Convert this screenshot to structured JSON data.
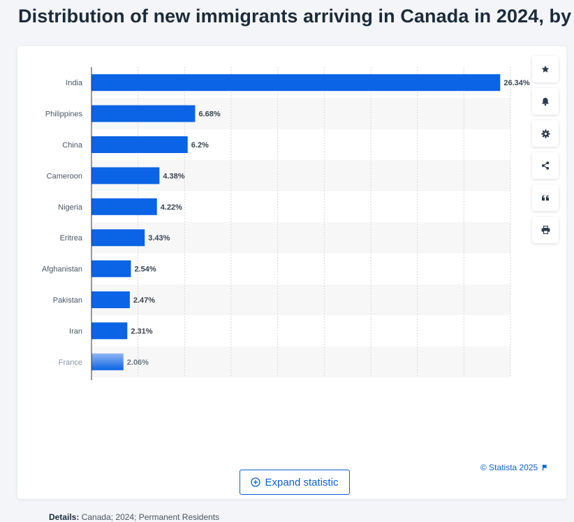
{
  "page": {
    "title": "Distribution of new immigrants arriving in Canada in 2024, by"
  },
  "tools": [
    {
      "name": "favorite"
    },
    {
      "name": "notification"
    },
    {
      "name": "settings"
    },
    {
      "name": "share"
    },
    {
      "name": "cite"
    },
    {
      "name": "print"
    }
  ],
  "colors": {
    "bar": "#0b63e5",
    "bar_faded": "#8fb6f3",
    "stripe": "#f7f7f8",
    "grid": "#d4d7db",
    "label": "#4a5563",
    "value": "#3a4451",
    "accent": "#0b5fd3"
  },
  "chart_data": {
    "type": "bar",
    "orientation": "horizontal",
    "categories": [
      "India",
      "Philippines",
      "China",
      "Cameroon",
      "Nigeria",
      "Eritrea",
      "Afghanistan",
      "Pakistan",
      "Iran",
      "France"
    ],
    "values": [
      26.34,
      6.68,
      6.2,
      4.38,
      4.22,
      3.43,
      2.54,
      2.47,
      2.31,
      2.06
    ],
    "value_labels": [
      "26.34%",
      "6.68%",
      "6.2%",
      "4.38%",
      "4.22%",
      "3.43%",
      "2.54%",
      "2.47%",
      "2.31%",
      "2.06%"
    ],
    "xlim": [
      0,
      27
    ],
    "grid": true,
    "faded_last_row": true
  },
  "expand_label": "Expand statistic",
  "details": {
    "label": "Details:",
    "text": "Canada; 2024; Permanent Residents"
  },
  "copyright": "© Statista 2025"
}
